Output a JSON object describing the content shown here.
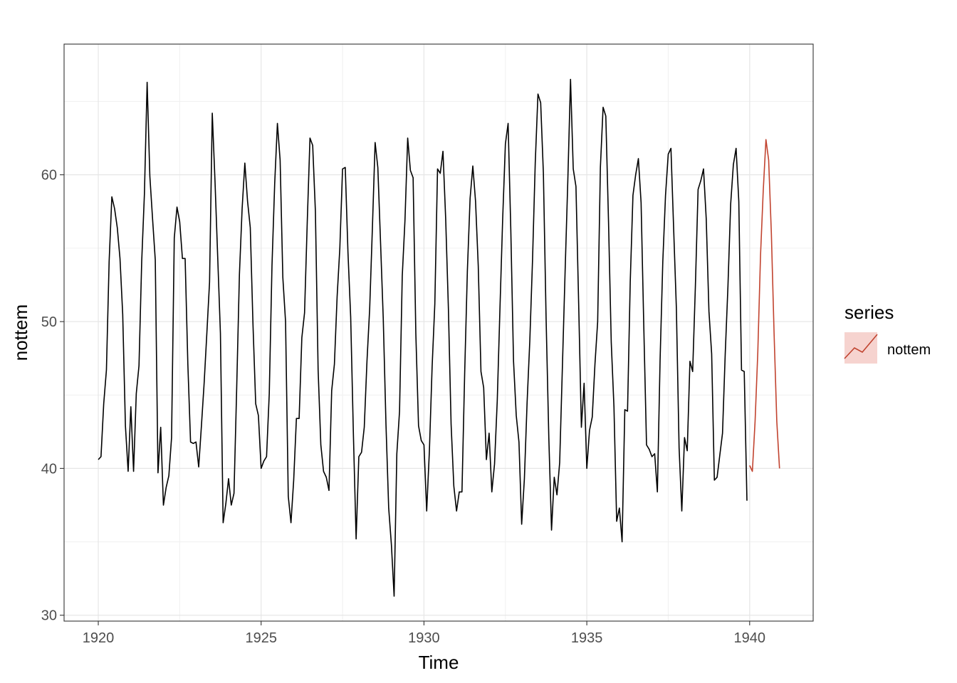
{
  "chart_data": {
    "type": "line",
    "xlabel": "Time",
    "ylabel": "nottem",
    "xlim": [
      1918.95,
      1941.95
    ],
    "ylim": [
      29.6,
      68.9
    ],
    "x_ticks": [
      1920,
      1925,
      1930,
      1935,
      1940
    ],
    "y_ticks": [
      30,
      40,
      50,
      60
    ],
    "y_minor_ticks": [
      35,
      45,
      55,
      65
    ],
    "grid": true,
    "start": 1920,
    "frequency": 12,
    "legend": {
      "title": "series",
      "position": "right",
      "entries": [
        "nottem"
      ]
    },
    "series": [
      {
        "color": "#000000",
        "values": [
          40.6,
          40.8,
          44.4,
          46.7,
          54.1,
          58.5,
          57.7,
          56.4,
          54.3,
          50.5,
          42.9,
          39.8,
          44.2,
          39.8,
          45.1,
          47.0,
          54.1,
          58.7,
          66.3,
          59.9,
          57.0,
          54.2,
          39.7,
          42.8,
          37.5,
          38.7,
          39.5,
          42.1,
          55.7,
          57.8,
          56.8,
          54.3,
          54.3,
          47.1,
          41.8,
          41.7,
          41.8,
          40.1,
          42.9,
          45.8,
          49.2,
          52.7,
          64.2,
          59.6,
          54.4,
          49.2,
          36.3,
          37.6,
          39.3,
          37.5,
          38.3,
          45.5,
          53.2,
          57.7,
          60.8,
          58.2,
          56.4,
          49.8,
          44.4,
          43.6,
          40.0,
          40.5,
          40.8,
          45.1,
          53.8,
          59.4,
          63.5,
          61.0,
          53.0,
          50.0,
          38.1,
          36.3,
          39.2,
          43.4,
          43.4,
          48.9,
          50.6,
          56.8,
          62.5,
          62.0,
          57.5,
          46.7,
          41.6,
          39.8,
          39.4,
          38.5,
          45.3,
          47.1,
          51.7,
          55.0,
          60.4,
          60.5,
          54.7,
          50.3,
          42.3,
          35.2,
          40.8,
          41.1,
          42.8,
          47.3,
          50.9,
          56.4,
          62.2,
          60.5,
          55.4,
          50.2,
          43.0,
          37.3,
          34.8,
          31.3,
          41.0,
          43.9,
          53.1,
          56.9,
          62.5,
          60.3,
          59.8,
          49.2,
          42.9,
          41.9,
          41.6,
          37.1,
          41.2,
          46.9,
          51.2,
          60.4,
          60.1,
          61.6,
          57.0,
          50.9,
          43.0,
          38.8,
          37.1,
          38.4,
          38.4,
          46.5,
          53.5,
          58.4,
          60.6,
          58.2,
          53.8,
          46.6,
          45.5,
          40.6,
          42.4,
          38.4,
          40.3,
          44.6,
          50.9,
          57.0,
          62.1,
          63.5,
          56.2,
          47.3,
          43.6,
          41.8,
          36.2,
          39.3,
          44.5,
          48.7,
          54.2,
          60.8,
          65.5,
          64.9,
          60.1,
          50.2,
          42.1,
          35.8,
          39.4,
          38.2,
          40.4,
          46.9,
          53.4,
          59.6,
          66.5,
          60.4,
          59.2,
          51.2,
          42.8,
          45.8,
          40.0,
          42.6,
          43.5,
          47.1,
          50.0,
          60.5,
          64.6,
          64.0,
          56.8,
          48.6,
          44.2,
          36.4,
          37.3,
          35.0,
          44.0,
          43.9,
          52.7,
          58.6,
          60.0,
          61.1,
          58.1,
          49.6,
          41.6,
          41.3,
          40.8,
          41.0,
          38.4,
          47.4,
          54.1,
          58.6,
          61.4,
          61.8,
          56.3,
          50.9,
          41.4,
          37.1,
          42.1,
          41.2,
          47.3,
          46.6,
          52.4,
          59.0,
          59.6,
          60.4,
          57.0,
          50.7,
          47.8,
          39.2,
          39.4,
          40.9,
          42.4,
          47.8,
          52.4,
          58.0,
          60.7,
          61.8,
          58.2,
          46.7,
          46.6,
          37.8
        ]
      },
      {
        "name": "nottem",
        "start": 1940,
        "color": "#c1432f",
        "values": [
          40.2,
          39.8,
          43.2,
          47.9,
          54.5,
          58.9,
          62.4,
          61.0,
          56.0,
          49.2,
          43.2,
          40.0
        ]
      }
    ]
  }
}
